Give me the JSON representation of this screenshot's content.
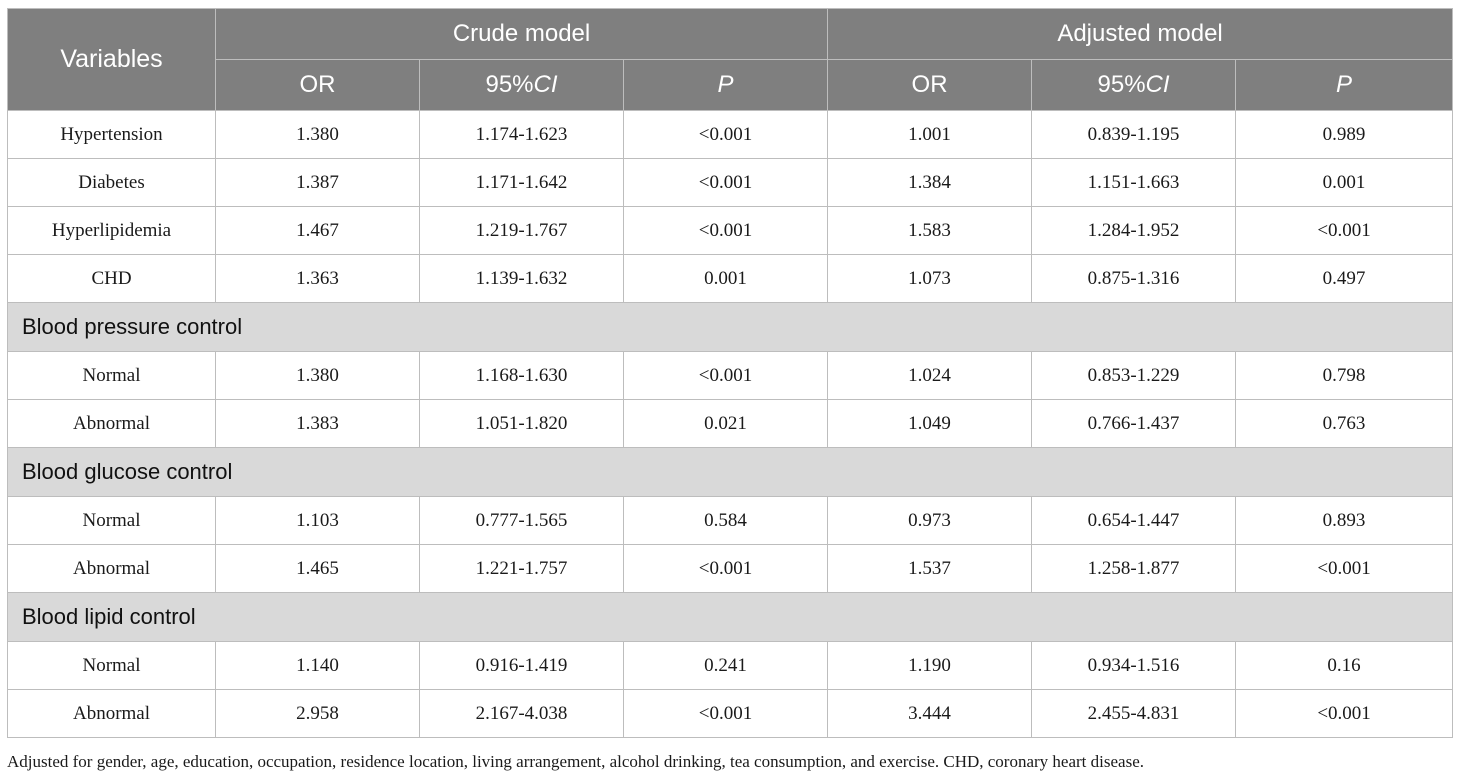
{
  "header": {
    "variables": "Variables",
    "group_crude": "Crude model",
    "group_adjusted": "Adjusted model",
    "col_or": "OR",
    "col_ci_prefix": "95%",
    "col_ci_italic": "CI",
    "col_p": "P"
  },
  "rows": {
    "hypertension": {
      "label": "Hypertension",
      "c_or": "1.380",
      "c_ci": "1.174-1.623",
      "c_p": "<0.001",
      "a_or": "1.001",
      "a_ci": "0.839-1.195",
      "a_p": "0.989"
    },
    "diabetes": {
      "label": "Diabetes",
      "c_or": "1.387",
      "c_ci": "1.171-1.642",
      "c_p": "<0.001",
      "a_or": "1.384",
      "a_ci": "1.151-1.663",
      "a_p": "0.001"
    },
    "hyperlipidemia": {
      "label": "Hyperlipidemia",
      "c_or": "1.467",
      "c_ci": "1.219-1.767",
      "c_p": "<0.001",
      "a_or": "1.583",
      "a_ci": "1.284-1.952",
      "a_p": "<0.001"
    },
    "chd": {
      "label": "CHD",
      "c_or": "1.363",
      "c_ci": "1.139-1.632",
      "c_p": "0.001",
      "a_or": "1.073",
      "a_ci": "0.875-1.316",
      "a_p": "0.497"
    }
  },
  "groups": {
    "bp": {
      "title": "Blood pressure control",
      "normal": {
        "label": "Normal",
        "c_or": "1.380",
        "c_ci": "1.168-1.630",
        "c_p": "<0.001",
        "a_or": "1.024",
        "a_ci": "0.853-1.229",
        "a_p": "0.798"
      },
      "abnormal": {
        "label": "Abnormal",
        "c_or": "1.383",
        "c_ci": "1.051-1.820",
        "c_p": "0.021",
        "a_or": "1.049",
        "a_ci": "0.766-1.437",
        "a_p": "0.763"
      }
    },
    "bg": {
      "title": "Blood glucose control",
      "normal": {
        "label": "Normal",
        "c_or": "1.103",
        "c_ci": "0.777-1.565",
        "c_p": "0.584",
        "a_or": "0.973",
        "a_ci": "0.654-1.447",
        "a_p": "0.893"
      },
      "abnormal": {
        "label": "Abnormal",
        "c_or": "1.465",
        "c_ci": "1.221-1.757",
        "c_p": "<0.001",
        "a_or": "1.537",
        "a_ci": "1.258-1.877",
        "a_p": "<0.001"
      }
    },
    "bl": {
      "title": "Blood lipid control",
      "normal": {
        "label": "Normal",
        "c_or": "1.140",
        "c_ci": "0.916-1.419",
        "c_p": "0.241",
        "a_or": "1.190",
        "a_ci": "0.934-1.516",
        "a_p": "0.16"
      },
      "abnormal": {
        "label": "Abnormal",
        "c_or": "2.958",
        "c_ci": "2.167-4.038",
        "c_p": "<0.001",
        "a_or": "3.444",
        "a_ci": "2.455-4.831",
        "a_p": "<0.001"
      }
    }
  },
  "footnote": "Adjusted for gender, age, education, occupation, residence location, living arrangement, alcohol drinking, tea consumption, and exercise. CHD, coronary heart disease.",
  "colors": {
    "header_bg": "#7f7f7f",
    "group_bg": "#d9d9d9",
    "border": "#bdbdbd"
  }
}
